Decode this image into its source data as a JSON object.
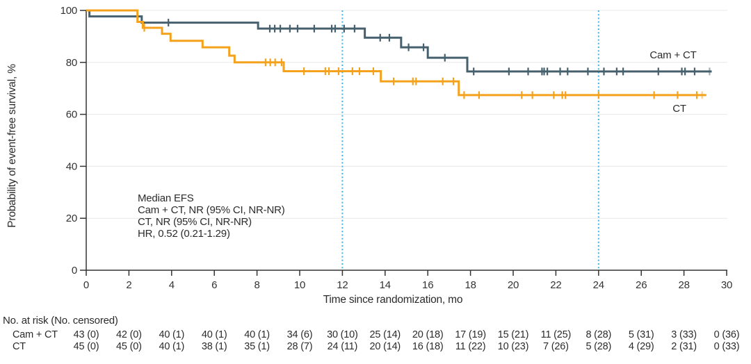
{
  "figure": {
    "annotation": {
      "lines": [
        "Median EFS",
        "Cam + CT, NR (95% CI, NR-NR)",
        "CT, NR (95% CI, NR-NR)",
        "HR, 0.52 (0.21-1.29)"
      ]
    },
    "risk_table": {
      "header": "No. at risk (No. censored)",
      "timepoints": [
        0,
        2,
        4,
        6,
        8,
        10,
        12,
        14,
        16,
        18,
        20,
        22,
        24,
        26,
        28,
        30
      ],
      "rows": [
        {
          "label": "Cam + CT",
          "values": [
            "43 (0)",
            "42 (0)",
            "40 (1)",
            "40 (1)",
            "40 (1)",
            "34 (6)",
            "30 (10)",
            "25 (14)",
            "20 (18)",
            "17 (19)",
            "15 (21)",
            "11 (25)",
            "8 (28)",
            "5 (31)",
            "3 (33)",
            "0 (36)"
          ]
        },
        {
          "label": "CT",
          "values": [
            "45 (0)",
            "45 (0)",
            "40 (1)",
            "38 (1)",
            "35 (1)",
            "28 (7)",
            "24 (11)",
            "20 (14)",
            "16 (18)",
            "11 (22)",
            "10 (23)",
            "7 (26)",
            "5 (28)",
            "4 (29)",
            "2 (31)",
            "0 (33)"
          ]
        }
      ]
    }
  },
  "chart_data": {
    "type": "line",
    "subtype": "kaplan-meier-step",
    "title": "",
    "xlabel": "Time since randomization, mo",
    "ylabel": "Probability of event-free survival, %",
    "xlim": [
      0,
      30
    ],
    "ylim": [
      0,
      100
    ],
    "x_ticks": [
      0,
      2,
      4,
      6,
      8,
      10,
      12,
      14,
      16,
      18,
      20,
      22,
      24,
      26,
      28,
      30
    ],
    "y_ticks": [
      0,
      20,
      40,
      60,
      80,
      100
    ],
    "grid": true,
    "grid_color": "#e8e8e8",
    "axis_color": "#333333",
    "reference_lines_x": [
      12,
      24
    ],
    "reference_line_color": "#3fb0e5",
    "legend_position": "end-of-curve",
    "series": [
      {
        "name": "Cam + CT",
        "color": "#46606e",
        "steps": [
          [
            0,
            100
          ],
          [
            0.15,
            97.7
          ],
          [
            2.6,
            95.3
          ],
          [
            8.05,
            93.0
          ],
          [
            13.05,
            89.5
          ],
          [
            14.75,
            85.8
          ],
          [
            16.0,
            81.8
          ],
          [
            17.85,
            76.5
          ]
        ],
        "end_time": 29.3,
        "censor_times": [
          3.85,
          8.6,
          8.83,
          9.09,
          9.54,
          9.9,
          10.68,
          11.5,
          11.66,
          12.08,
          12.57,
          13.77,
          14.2,
          15.1,
          15.8,
          16.8,
          18.15,
          19.8,
          20.7,
          21.35,
          21.45,
          21.6,
          22.2,
          22.55,
          23.5,
          24.25,
          24.85,
          25.15,
          26.8,
          27.9,
          28.05,
          28.5,
          29.2
        ]
      },
      {
        "name": "CT",
        "color": "#f4a21c",
        "steps": [
          [
            0,
            100
          ],
          [
            2.4,
            95.6
          ],
          [
            2.65,
            93.3
          ],
          [
            3.55,
            91.0
          ],
          [
            3.95,
            88.3
          ],
          [
            5.45,
            85.8
          ],
          [
            6.7,
            82.6
          ],
          [
            6.95,
            80.0
          ],
          [
            9.25,
            76.6
          ],
          [
            13.8,
            72.7
          ],
          [
            17.45,
            67.4
          ]
        ],
        "end_time": 29.05,
        "censor_times": [
          2.72,
          8.4,
          8.62,
          8.85,
          9.15,
          10.2,
          11.2,
          11.37,
          11.82,
          12.47,
          12.8,
          13.45,
          14.4,
          15.3,
          15.45,
          16.7,
          17.2,
          17.7,
          18.4,
          20.4,
          20.9,
          21.9,
          22.3,
          22.45,
          24.0,
          26.6,
          27.7,
          28.6,
          28.85
        ]
      }
    ]
  }
}
